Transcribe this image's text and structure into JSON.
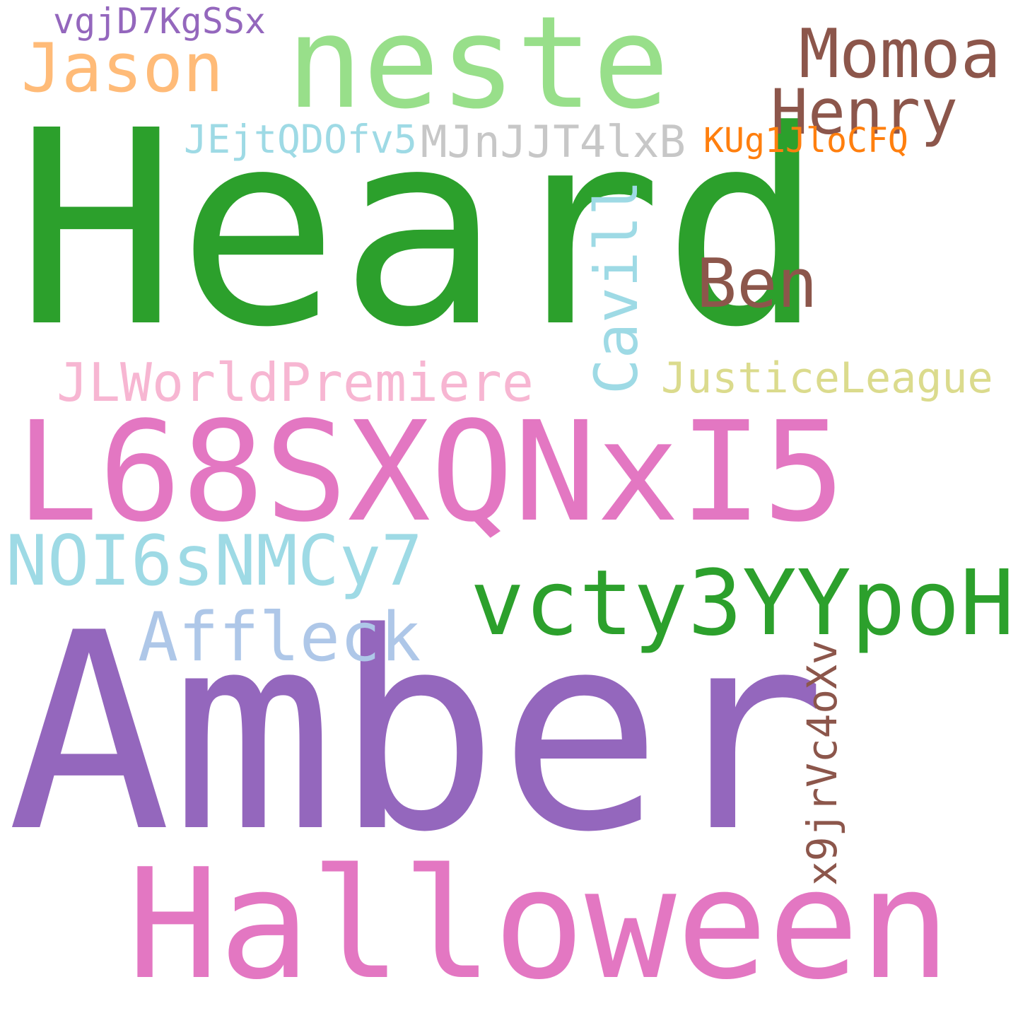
{
  "word_cloud": {
    "words": [
      {
        "text": "Heard",
        "color": "#2ca02c",
        "orientation": "horizontal"
      },
      {
        "text": "Amber",
        "color": "#9467bd",
        "orientation": "horizontal"
      },
      {
        "text": "L68SXQNxI5",
        "color": "#e377c2",
        "orientation": "horizontal"
      },
      {
        "text": "Halloween",
        "color": "#e377c2",
        "orientation": "horizontal"
      },
      {
        "text": "neste",
        "color": "#98df8a",
        "orientation": "horizontal"
      },
      {
        "text": "vcty3YYpoH",
        "color": "#2ca02c",
        "orientation": "horizontal"
      },
      {
        "text": "NOI6sNMCy7",
        "color": "#9edae5",
        "orientation": "horizontal"
      },
      {
        "text": "Momoa",
        "color": "#8c564b",
        "orientation": "horizontal"
      },
      {
        "text": "Affleck",
        "color": "#aec7e8",
        "orientation": "horizontal"
      },
      {
        "text": "Jason",
        "color": "#ffbb78",
        "orientation": "horizontal"
      },
      {
        "text": "Henry",
        "color": "#8c564b",
        "orientation": "horizontal"
      },
      {
        "text": "Ben",
        "color": "#8c564b",
        "orientation": "horizontal"
      },
      {
        "text": "Cavill",
        "color": "#9edae5",
        "orientation": "vertical"
      },
      {
        "text": "JLWorldPremiere",
        "color": "#f7b6d2",
        "orientation": "horizontal"
      },
      {
        "text": "JusticeLeague",
        "color": "#dbdb8d",
        "orientation": "horizontal"
      },
      {
        "text": "MJnJJT4lxB",
        "color": "#c7c7c7",
        "orientation": "horizontal"
      },
      {
        "text": "x9jrVc4oXv",
        "color": "#8c564b",
        "orientation": "vertical"
      },
      {
        "text": "JEjtQDOfv5",
        "color": "#9edae5",
        "orientation": "horizontal"
      },
      {
        "text": "vgjD7KgSSx",
        "color": "#9467bd",
        "orientation": "horizontal"
      },
      {
        "text": "KUg1JloCFQ",
        "color": "#ff7f0e",
        "orientation": "horizontal"
      }
    ]
  }
}
